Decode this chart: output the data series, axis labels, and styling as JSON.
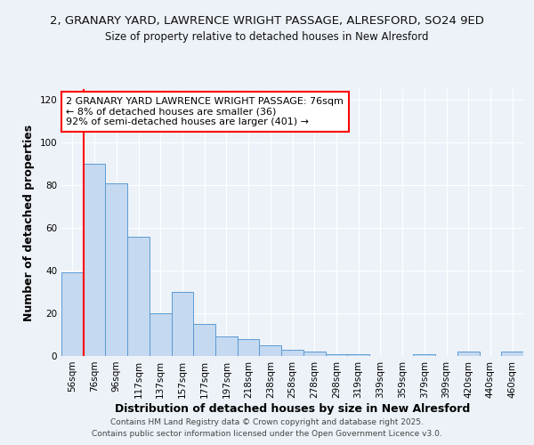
{
  "title_line1": "2, GRANARY YARD, LAWRENCE WRIGHT PASSAGE, ALRESFORD, SO24 9ED",
  "title_line2": "Size of property relative to detached houses in New Alresford",
  "xlabel": "Distribution of detached houses by size in New Alresford",
  "ylabel": "Number of detached properties",
  "categories": [
    "56sqm",
    "76sqm",
    "96sqm",
    "117sqm",
    "137sqm",
    "157sqm",
    "177sqm",
    "197sqm",
    "218sqm",
    "238sqm",
    "258sqm",
    "278sqm",
    "298sqm",
    "319sqm",
    "339sqm",
    "359sqm",
    "379sqm",
    "399sqm",
    "420sqm",
    "440sqm",
    "460sqm"
  ],
  "values": [
    39,
    90,
    81,
    56,
    20,
    30,
    15,
    9,
    8,
    5,
    3,
    2,
    1,
    1,
    0,
    0,
    1,
    0,
    2,
    0,
    2
  ],
  "bar_color": "#c5d9f0",
  "bar_edge_color": "#5b9bd5",
  "highlight_bar_index": 1,
  "marker_color": "red",
  "annotation_text": "2 GRANARY YARD LAWRENCE WRIGHT PASSAGE: 76sqm\n← 8% of detached houses are smaller (36)\n92% of semi-detached houses are larger (401) →",
  "ylim": [
    0,
    125
  ],
  "yticks": [
    0,
    20,
    40,
    60,
    80,
    100,
    120
  ],
  "footer_line1": "Contains HM Land Registry data © Crown copyright and database right 2025.",
  "footer_line2": "Contains public sector information licensed under the Open Government Licence v3.0.",
  "bg_color": "#edf2f9",
  "plot_bg_color": "#edf2f9",
  "grid_color": "#ffffff",
  "title_fontsize": 9.5,
  "subtitle_fontsize": 8.5,
  "tick_fontsize": 7.5,
  "label_fontsize": 9,
  "footer_fontsize": 6.5,
  "annotation_fontsize": 8
}
